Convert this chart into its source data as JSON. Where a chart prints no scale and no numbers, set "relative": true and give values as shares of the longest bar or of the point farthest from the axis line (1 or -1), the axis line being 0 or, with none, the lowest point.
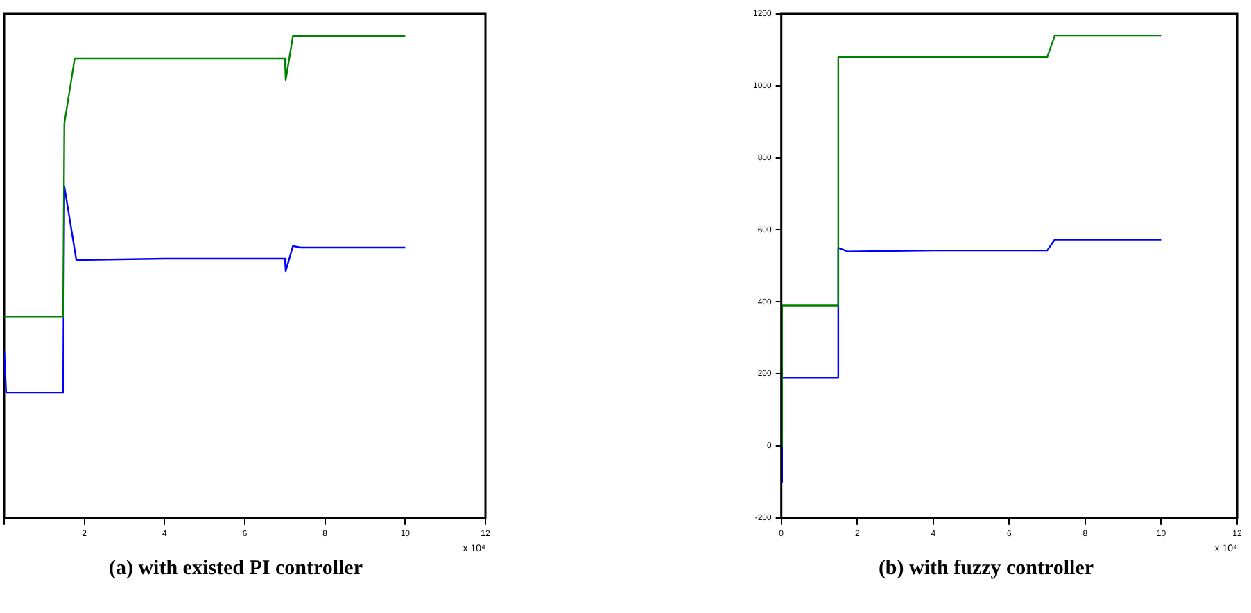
{
  "chart_data": [
    {
      "type": "line",
      "title": "(a) with existed PI controller",
      "xlabel": "x 10⁴",
      "relative": true,
      "tick_labels": "x",
      "xlim": [
        0,
        12
      ],
      "xticks": [
        {
          "value": 0,
          "label": null
        },
        2,
        4,
        6,
        8,
        10,
        12
      ],
      "series": [
        {
          "color": "#008000",
          "x": [
            0,
            1.47,
            1.5,
            1.76,
            7.0,
            7.02,
            7.2,
            10
          ],
          "values": [
            0.418,
            0.418,
            0.818,
            0.954,
            0.954,
            0.908,
            1.0,
            1.0
          ]
        },
        {
          "color": "#0000ff",
          "x": [
            0,
            0.05,
            1.47,
            1.5,
            1.8,
            4.0,
            7.0,
            7.02,
            7.2,
            7.4,
            10
          ],
          "values": [
            0.347,
            0.26,
            0.26,
            0.688,
            0.535,
            0.538,
            0.538,
            0.512,
            0.564,
            0.561,
            0.561
          ]
        }
      ]
    },
    {
      "type": "line",
      "title": "(b) with fuzzy controller",
      "xlabel": "x 10⁴",
      "xlim": [
        0,
        12
      ],
      "xticks": [
        0,
        2,
        4,
        6,
        8,
        10,
        12
      ],
      "ylim": [
        -200,
        1200
      ],
      "yticks": [
        -200,
        0,
        200,
        400,
        600,
        800,
        1000,
        1200
      ],
      "series": [
        {
          "color": "#008000",
          "x": [
            0,
            0.02,
            1.49,
            1.5,
            7.0,
            7.2,
            10
          ],
          "values": [
            0,
            390,
            390,
            1080,
            1080,
            1140,
            1140
          ]
        },
        {
          "color": "#0000ff",
          "x": [
            0,
            0.02,
            1.49,
            1.5,
            1.75,
            4.0,
            7.0,
            7.2,
            10
          ],
          "values": [
            -100,
            190,
            190,
            550,
            540,
            543,
            543,
            573,
            573
          ]
        }
      ]
    }
  ]
}
